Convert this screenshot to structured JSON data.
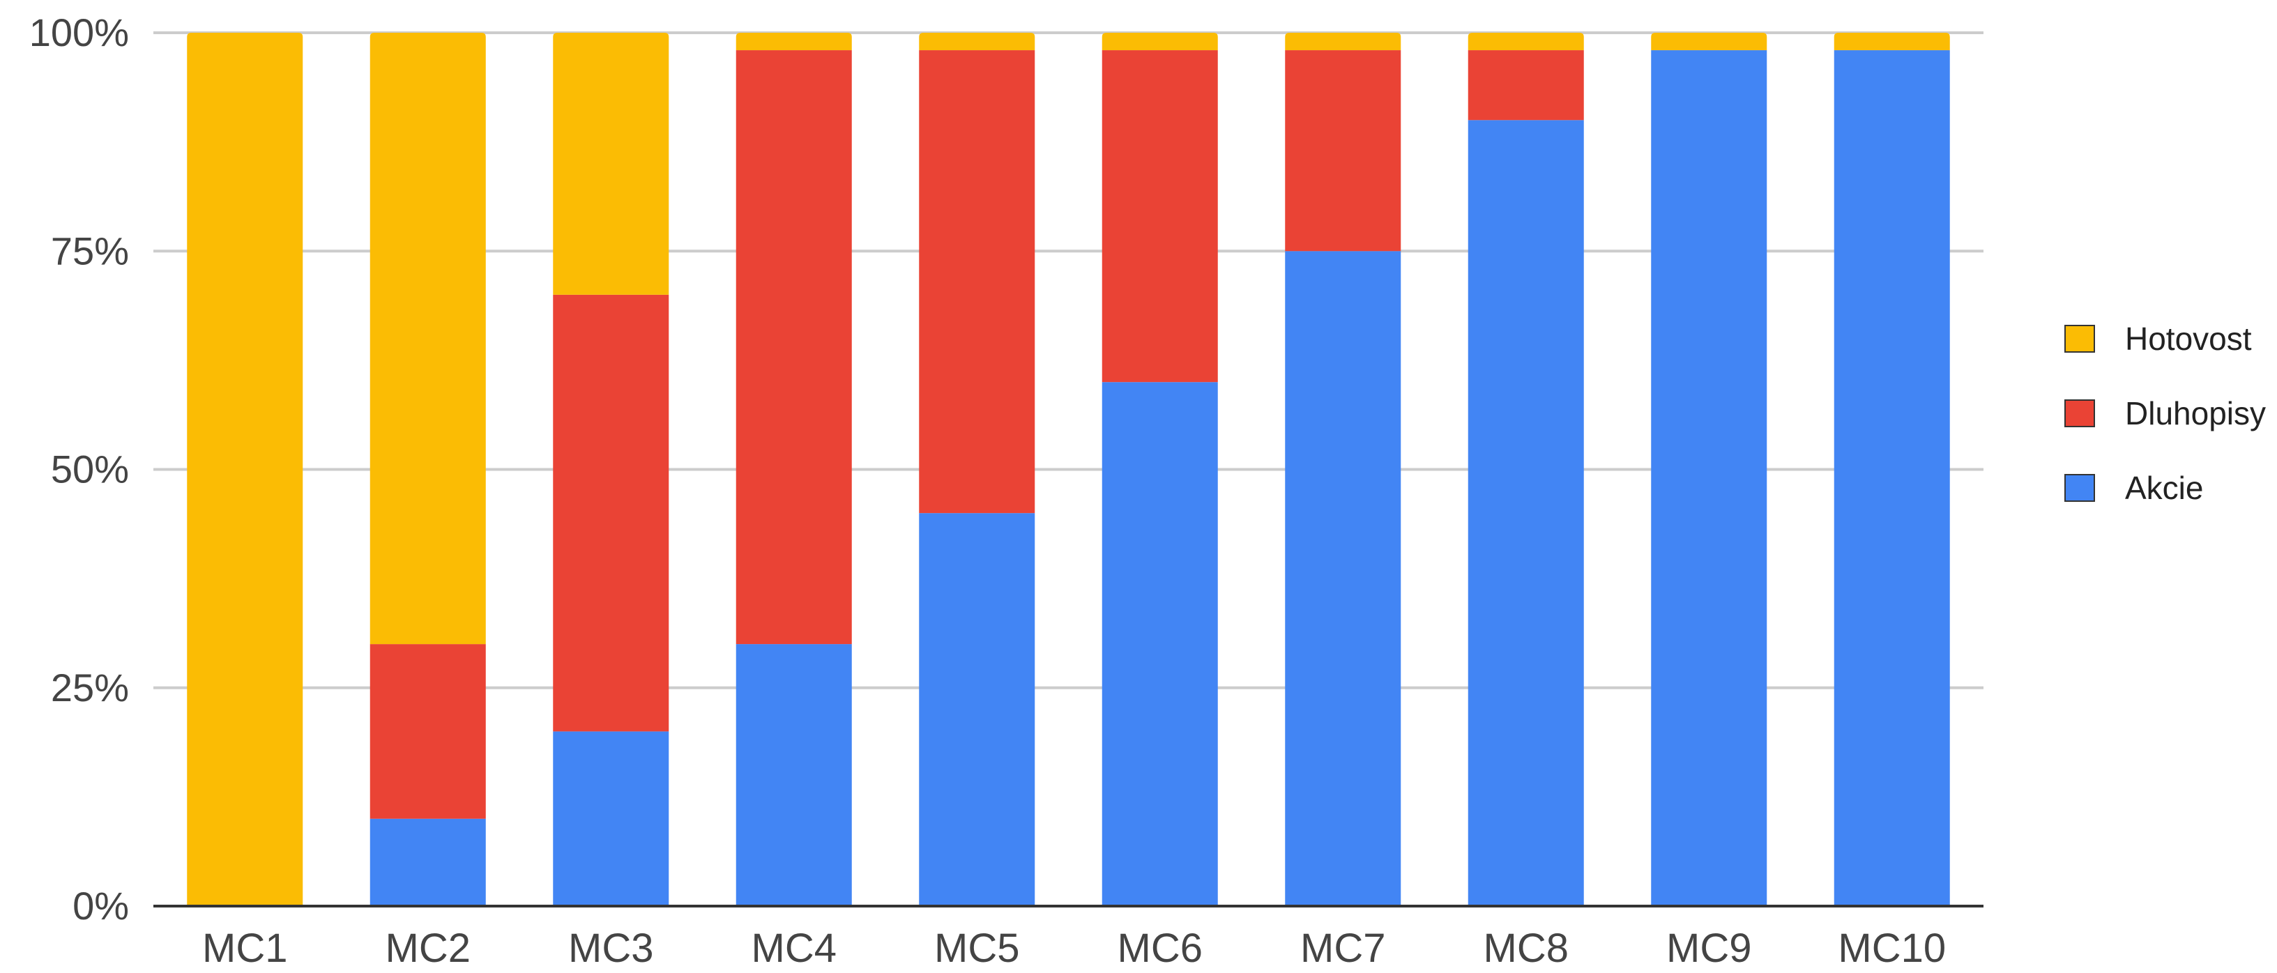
{
  "chart_data": {
    "type": "bar",
    "stacked": true,
    "stack_mode": "percent",
    "title": "",
    "xlabel": "",
    "ylabel": "",
    "ylim": [
      0,
      100
    ],
    "yticks": [
      0,
      25,
      50,
      75,
      100
    ],
    "ytick_labels": [
      "0%",
      "25%",
      "50%",
      "75%",
      "100%"
    ],
    "grid": true,
    "legend_position": "right",
    "categories": [
      "MC1",
      "MC2",
      "MC3",
      "MC4",
      "MC5",
      "MC6",
      "MC7",
      "MC8",
      "MC9",
      "MC10"
    ],
    "series": [
      {
        "name": "Akcie",
        "color": "#4285F4",
        "values": [
          0,
          10,
          20,
          30,
          45,
          60,
          75,
          90,
          98,
          98
        ]
      },
      {
        "name": "Dluhopisy",
        "color": "#EA4335",
        "values": [
          0,
          20,
          50,
          68,
          53,
          38,
          23,
          8,
          0,
          0
        ]
      },
      {
        "name": "Hotovost",
        "color": "#FBBC04",
        "values": [
          100,
          70,
          30,
          2,
          2,
          2,
          2,
          2,
          2,
          2
        ]
      }
    ],
    "legend_order": [
      "Hotovost",
      "Dluhopisy",
      "Akcie"
    ]
  }
}
